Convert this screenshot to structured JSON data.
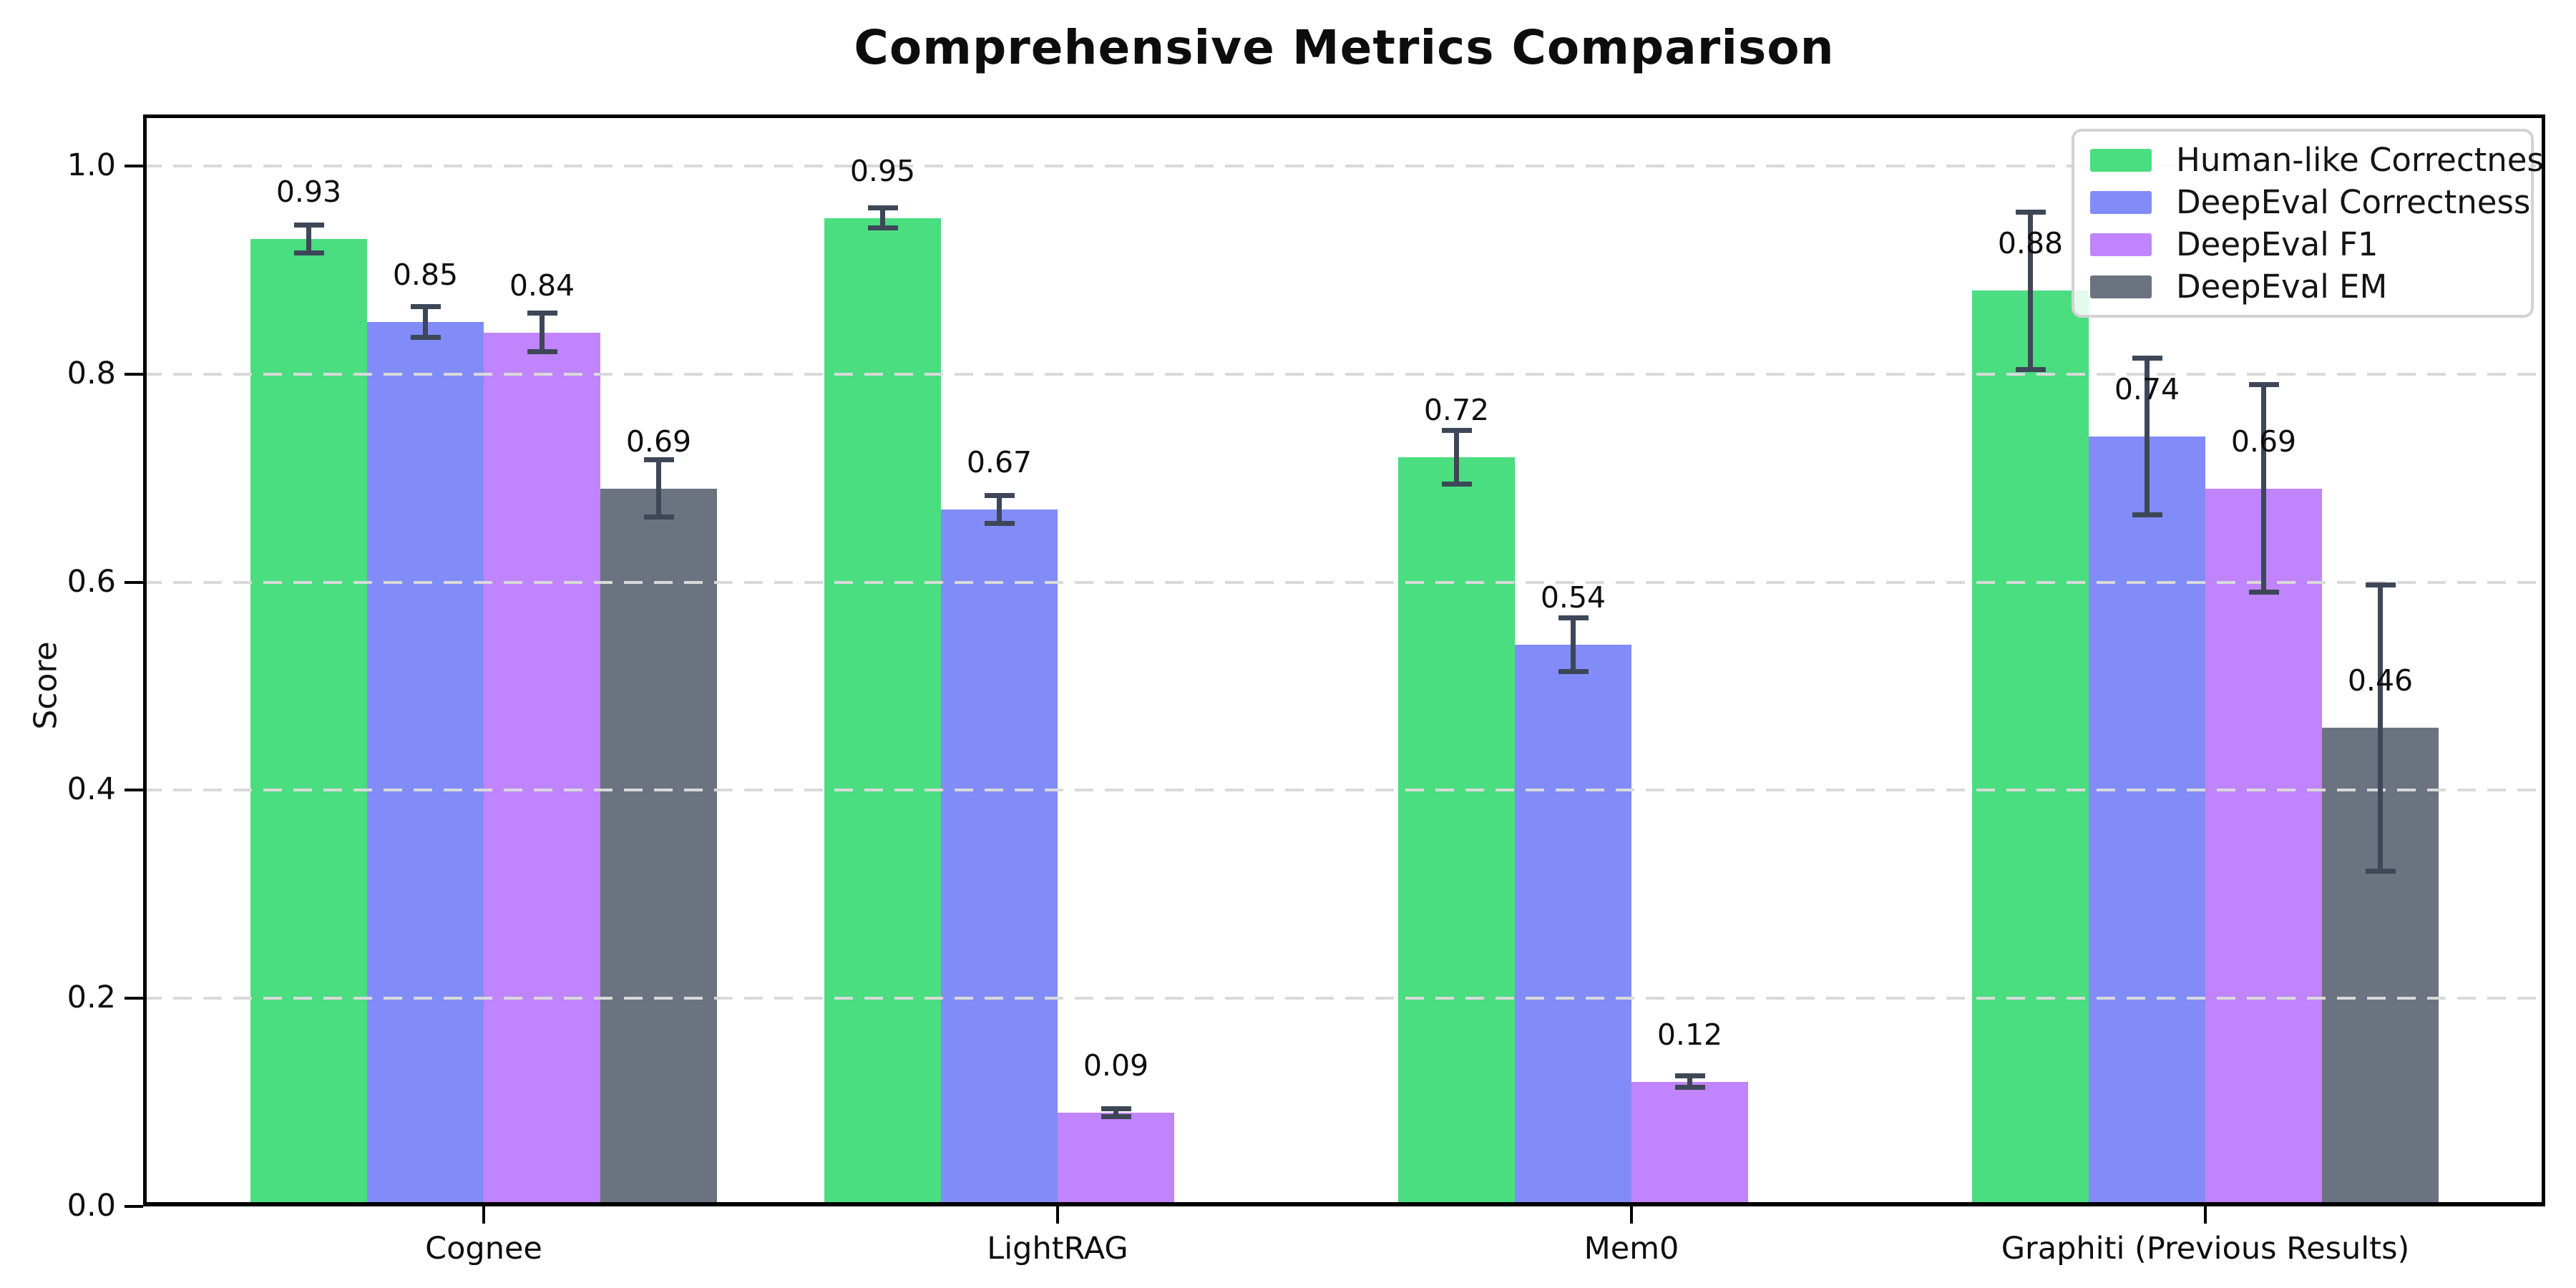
{
  "title": "Comprehensive Metrics Comparison",
  "chart_data": {
    "type": "bar",
    "title": "Comprehensive Metrics Comparison",
    "xlabel": "",
    "ylabel": "Score",
    "ylim": [
      0,
      1.05
    ],
    "yticks": [
      0.0,
      0.2,
      0.4,
      0.6,
      0.8,
      1.0
    ],
    "ytick_labels": [
      "0.0",
      "0.2",
      "0.4",
      "0.6",
      "0.8",
      "1.0"
    ],
    "grid": "horizontal dashed gridlines at each y tick, drawn over bars",
    "legend_position": "upper right",
    "categories": [
      "Cognee",
      "LightRAG",
      "Mem0",
      "Graphiti (Previous Results)"
    ],
    "series": [
      {
        "name": "Human-like Correctness",
        "color": "#4ade80",
        "values": [
          0.93,
          0.95,
          0.72,
          0.88
        ],
        "errors": [
          0.016,
          0.012,
          0.028,
          0.078
        ],
        "labels": [
          "0.93",
          "0.95",
          "0.72",
          "0.88"
        ]
      },
      {
        "name": "DeepEval Correctness",
        "color": "#818cf8",
        "values": [
          0.85,
          0.67,
          0.54,
          0.74
        ],
        "errors": [
          0.017,
          0.016,
          0.028,
          0.078
        ],
        "labels": [
          "0.85",
          "0.67",
          "0.54",
          "0.74"
        ]
      },
      {
        "name": "DeepEval F1",
        "color": "#c084fc",
        "values": [
          0.84,
          0.09,
          0.12,
          0.69
        ],
        "errors": [
          0.021,
          0.006,
          0.008,
          0.102
        ],
        "labels": [
          "0.84",
          "0.09",
          "0.12",
          "0.69"
        ]
      },
      {
        "name": "DeepEval EM",
        "color": "#6b7280",
        "values": [
          0.69,
          0.0,
          0.0,
          0.46
        ],
        "errors": [
          0.03,
          0.004,
          0.004,
          0.14
        ],
        "labels": [
          "0.69",
          "",
          "",
          "0.46"
        ]
      }
    ],
    "error_bar_color": "#3d4758",
    "notes": "zero-value bars show only a tiny error-bar cap at the baseline and no value label"
  }
}
